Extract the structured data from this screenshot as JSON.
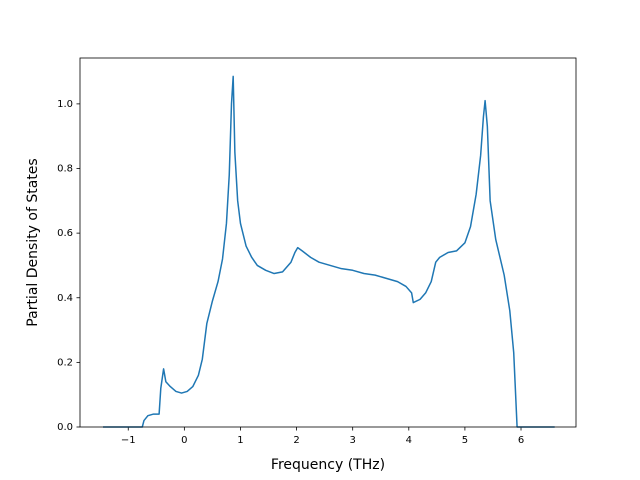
{
  "chart_data": {
    "type": "line",
    "xlabel": "Frequency (THz)",
    "ylabel": "Partial Density of States",
    "color": "#1f77b4",
    "x": [
      -1.45,
      -0.75,
      -0.72,
      -0.65,
      -0.55,
      -0.45,
      -0.42,
      -0.37,
      -0.33,
      -0.25,
      -0.15,
      -0.05,
      0.05,
      0.15,
      0.25,
      0.32,
      0.4,
      0.5,
      0.6,
      0.68,
      0.75,
      0.8,
      0.84,
      0.87,
      0.9,
      0.95,
      1.0,
      1.1,
      1.2,
      1.3,
      1.45,
      1.6,
      1.75,
      1.9,
      1.97,
      2.02,
      2.1,
      2.25,
      2.4,
      2.6,
      2.8,
      3.0,
      3.2,
      3.4,
      3.6,
      3.8,
      3.95,
      4.05,
      4.08,
      4.2,
      4.3,
      4.4,
      4.48,
      4.55,
      4.7,
      4.85,
      5.0,
      5.1,
      5.2,
      5.28,
      5.33,
      5.36,
      5.4,
      5.45,
      5.55,
      5.7,
      5.8,
      5.87,
      5.93,
      6.6
    ],
    "values": [
      0,
      0,
      0.02,
      0.035,
      0.04,
      0.04,
      0.12,
      0.18,
      0.14,
      0.125,
      0.11,
      0.105,
      0.11,
      0.125,
      0.16,
      0.21,
      0.32,
      0.39,
      0.45,
      0.52,
      0.63,
      0.78,
      1.0,
      1.085,
      0.85,
      0.7,
      0.63,
      0.56,
      0.525,
      0.5,
      0.485,
      0.475,
      0.48,
      0.51,
      0.54,
      0.555,
      0.545,
      0.525,
      0.51,
      0.5,
      0.49,
      0.485,
      0.475,
      0.47,
      0.46,
      0.45,
      0.435,
      0.415,
      0.385,
      0.395,
      0.415,
      0.45,
      0.51,
      0.525,
      0.54,
      0.545,
      0.57,
      0.62,
      0.72,
      0.84,
      0.96,
      1.01,
      0.93,
      0.7,
      0.58,
      0.47,
      0.36,
      0.23,
      0.0,
      0
    ],
    "xlim": [
      -1.86,
      6.98
    ],
    "ylim": [
      0,
      1.142
    ],
    "xticks": [
      {
        "value": -1,
        "label": "−1"
      },
      0,
      1,
      2,
      3,
      4,
      5,
      6
    ],
    "yticks": [
      {
        "value": 0,
        "label": "0.0"
      },
      0.2,
      0.4,
      0.6,
      0.8,
      {
        "value": 1,
        "label": "1.0"
      }
    ],
    "grid": false
  }
}
